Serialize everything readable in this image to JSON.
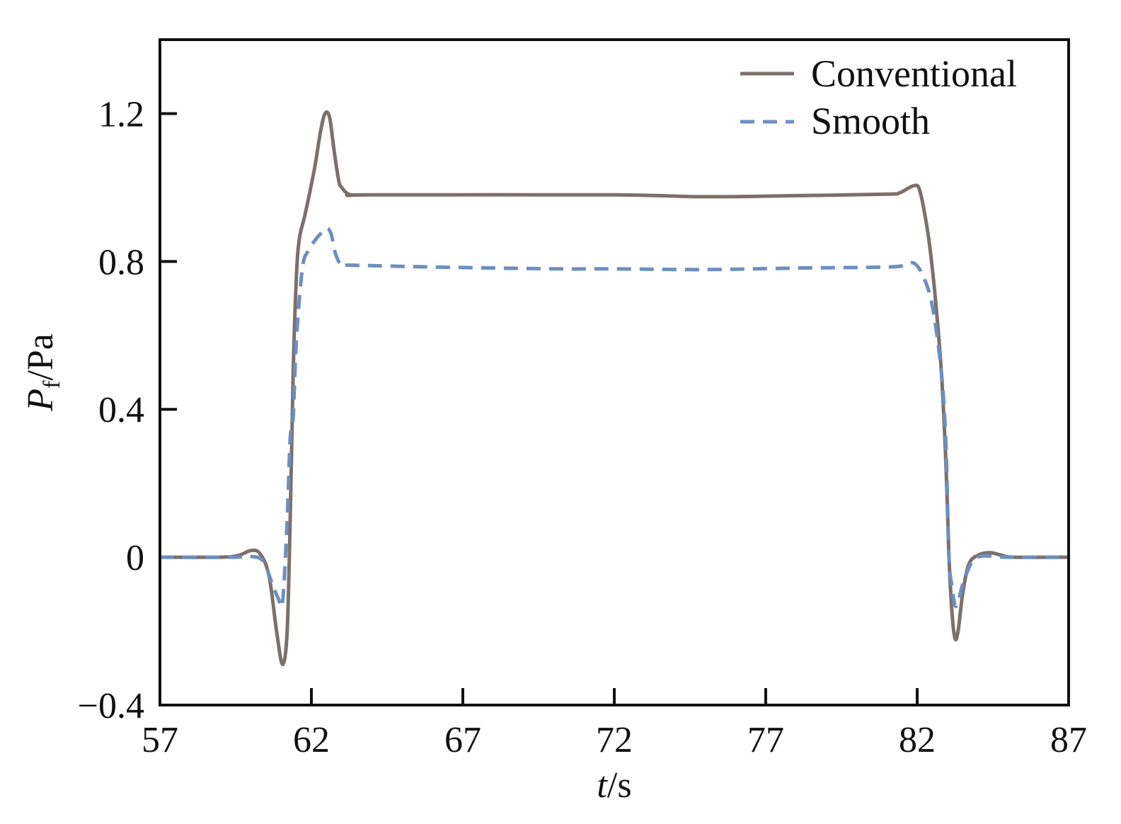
{
  "chart_data": {
    "type": "line",
    "xlabel": {
      "italic": "t",
      "rest": "/s"
    },
    "ylabel": {
      "italic": "P",
      "sub": "f",
      "rest": "/Pa"
    },
    "xlim": [
      57,
      87
    ],
    "ylim": [
      -0.4,
      1.4
    ],
    "xticks": [
      57,
      62,
      67,
      72,
      77,
      82,
      87
    ],
    "xtick_labels": [
      "57",
      "62",
      "67",
      "72",
      "77",
      "82",
      "87"
    ],
    "yticks": [
      -0.4,
      0,
      0.4,
      0.8,
      1.2
    ],
    "ytick_labels": [
      "−0.4",
      "0",
      "0.4",
      "0.8",
      "1.2"
    ],
    "grid": false,
    "legend_position": "top-right",
    "series": [
      {
        "name": "Conventional",
        "style": "solid",
        "color": "#7d706b",
        "x": [
          57,
          59,
          59.6,
          60,
          60.3,
          60.6,
          60.85,
          61.05,
          61.2,
          61.3,
          61.4,
          61.5,
          61.6,
          61.8,
          62.1,
          62.3,
          62.45,
          62.6,
          62.75,
          62.9,
          63.0,
          63.3,
          64,
          72,
          75,
          78,
          81,
          81.4,
          81.7,
          81.9,
          82.05,
          82.2,
          82.4,
          82.6,
          82.8,
          82.95,
          83.05,
          83.15,
          83.25,
          83.35,
          83.5,
          83.7,
          84.0,
          84.4,
          84.8,
          85.2,
          87
        ],
        "y": [
          0,
          0,
          0.005,
          0.018,
          0.01,
          -0.05,
          -0.2,
          -0.29,
          -0.2,
          0.1,
          0.5,
          0.75,
          0.86,
          0.93,
          1.05,
          1.15,
          1.2,
          1.19,
          1.1,
          1.02,
          1.0,
          0.98,
          0.98,
          0.98,
          0.975,
          0.978,
          0.982,
          0.985,
          0.998,
          1.005,
          1.0,
          0.95,
          0.85,
          0.7,
          0.5,
          0.25,
          0.0,
          -0.15,
          -0.22,
          -0.2,
          -0.1,
          -0.02,
          0.005,
          0.012,
          0.005,
          0,
          0
        ]
      },
      {
        "name": "Smooth",
        "style": "dashed",
        "color": "#6c8fbf",
        "x": [
          57,
          59.5,
          60.0,
          60.4,
          60.7,
          60.9,
          61.05,
          61.2,
          61.3,
          61.4,
          61.5,
          61.7,
          61.9,
          62.1,
          62.3,
          62.5,
          62.65,
          62.8,
          63.0,
          63.3,
          66,
          70,
          72,
          75,
          78,
          81,
          81.6,
          81.9,
          82.2,
          82.5,
          82.8,
          82.95,
          83.05,
          83.15,
          83.25,
          83.35,
          83.6,
          84.0,
          85,
          87
        ],
        "y": [
          0,
          0,
          0.002,
          -0.01,
          -0.07,
          -0.11,
          -0.12,
          0.1,
          0.32,
          0.38,
          0.58,
          0.78,
          0.83,
          0.855,
          0.875,
          0.89,
          0.875,
          0.82,
          0.79,
          0.79,
          0.785,
          0.78,
          0.78,
          0.778,
          0.782,
          0.785,
          0.79,
          0.795,
          0.76,
          0.68,
          0.5,
          0.3,
          0.0,
          -0.08,
          -0.13,
          -0.12,
          -0.05,
          0.0,
          0,
          0
        ]
      }
    ]
  }
}
